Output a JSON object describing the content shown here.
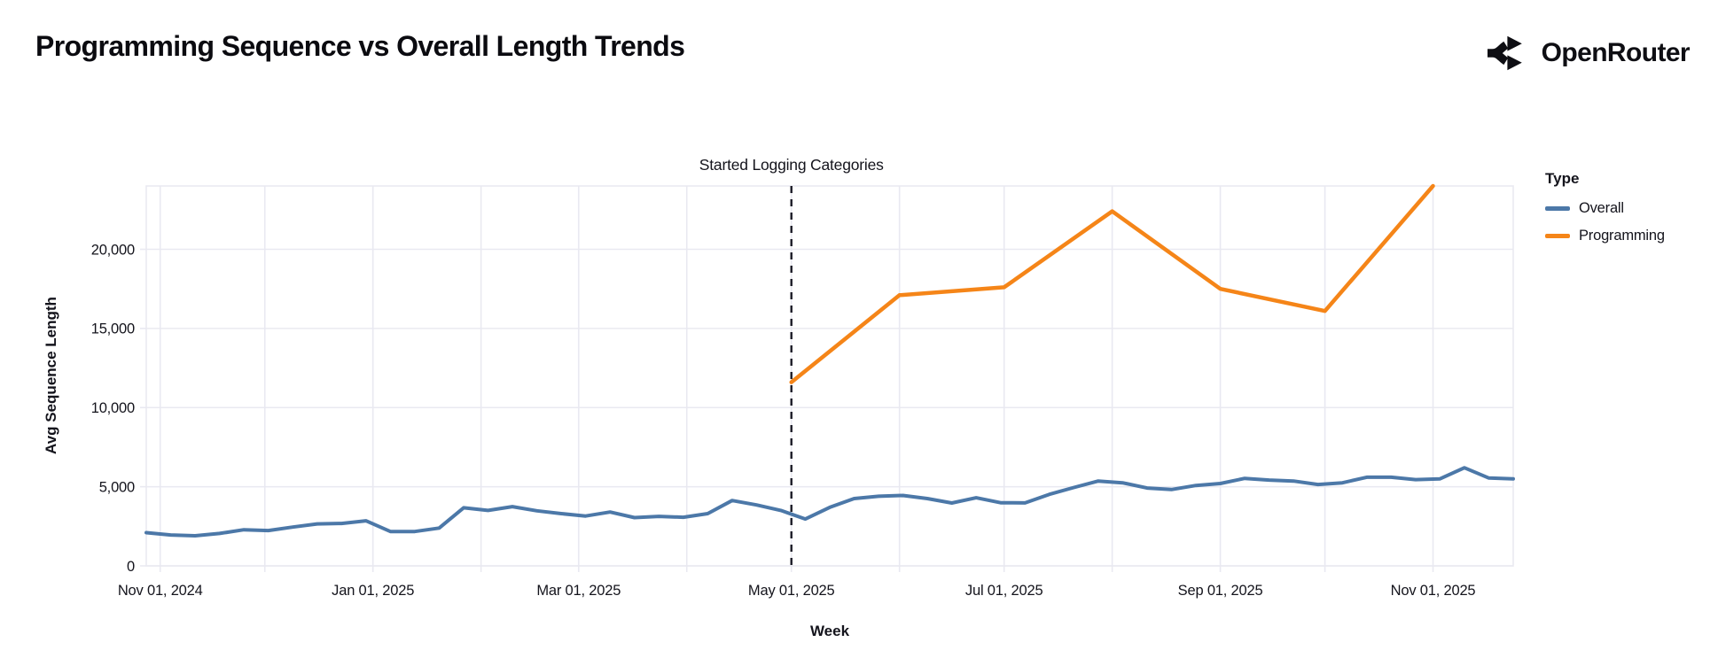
{
  "header": {
    "title": "Programming Sequence vs Overall Length Trends",
    "brand": "OpenRouter"
  },
  "chart_data": {
    "type": "line",
    "title": "Programming Sequence vs Overall Length Trends",
    "xlabel": "Week",
    "ylabel": "Avg Sequence Length",
    "ylim": [
      0,
      24000
    ],
    "grid": true,
    "x_axis_start": "Oct 28, 2024",
    "x_axis_end": "Nov 24, 2025",
    "x_ticks": [
      {
        "label": "Nov 01, 2024",
        "day": 4
      },
      {
        "label": "Jan 01, 2025",
        "day": 65
      },
      {
        "label": "Mar 01, 2025",
        "day": 124
      },
      {
        "label": "May 01, 2025",
        "day": 185
      },
      {
        "label": "Jul 01, 2025",
        "day": 246
      },
      {
        "label": "Sep 01, 2025",
        "day": 308
      },
      {
        "label": "Nov 01, 2025",
        "day": 369
      }
    ],
    "month_gridline_days": [
      4,
      34,
      65,
      96,
      124,
      155,
      185,
      216,
      246,
      277,
      308,
      338,
      369
    ],
    "y_ticks": [
      {
        "label": "0",
        "value": 0
      },
      {
        "label": "5,000",
        "value": 5000
      },
      {
        "label": "10,000",
        "value": 10000
      },
      {
        "label": "15,000",
        "value": 15000
      },
      {
        "label": "20,000",
        "value": 20000
      }
    ],
    "annotation": {
      "label": "Started Logging Categories",
      "day": 185
    },
    "legend": {
      "title": "Type",
      "position": "right",
      "items": [
        {
          "label": "Overall",
          "color": "#4c78a8"
        },
        {
          "label": "Programming",
          "color": "#f58518"
        }
      ]
    },
    "series": [
      {
        "name": "Overall",
        "color": "#4c78a8",
        "stroke_width": 4,
        "cadence_days": 7,
        "start_day": 0,
        "values": [
          2100,
          1950,
          1900,
          2050,
          2280,
          2230,
          2450,
          2650,
          2680,
          2850,
          2170,
          2170,
          2390,
          3670,
          3500,
          3740,
          3480,
          3300,
          3150,
          3400,
          3050,
          3130,
          3070,
          3300,
          4130,
          3850,
          3500,
          2960,
          3700,
          4250,
          4400,
          4450,
          4250,
          3970,
          4300,
          3990,
          3980,
          4520,
          4950,
          5360,
          5250,
          4920,
          4820,
          5080,
          5200,
          5530,
          5420,
          5360,
          5140,
          5250,
          5600,
          5600,
          5450,
          5500,
          6200,
          5550,
          5500
        ]
      },
      {
        "name": "Programming",
        "color": "#f58518",
        "stroke_width": 4.5,
        "points": [
          {
            "day": 185,
            "value": 11600
          },
          {
            "day": 216,
            "value": 17100
          },
          {
            "day": 246,
            "value": 17600
          },
          {
            "day": 277,
            "value": 22400
          },
          {
            "day": 308,
            "value": 17500
          },
          {
            "day": 338,
            "value": 16100
          },
          {
            "day": 369,
            "value": 24000
          }
        ]
      }
    ]
  },
  "colors": {
    "grid": "#e9e9f1",
    "tick_text": "#14141c",
    "annotation_line": "#1b1b26",
    "title_text": "#0b0b10"
  }
}
